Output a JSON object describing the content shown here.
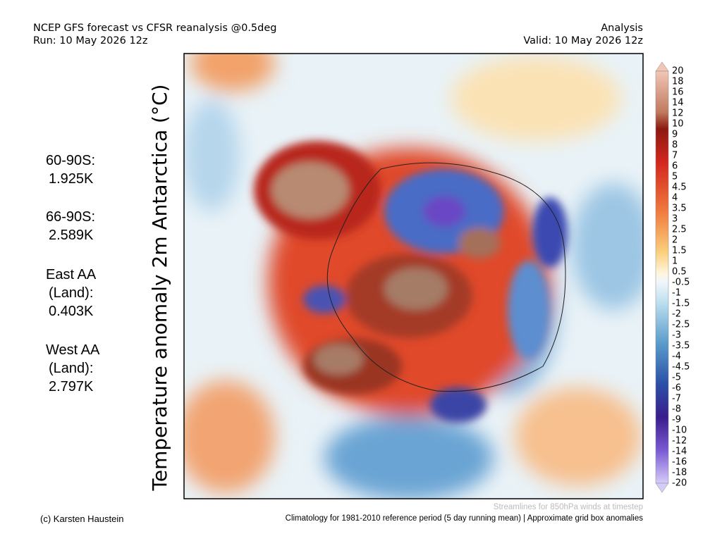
{
  "header": {
    "title": "NCEP GFS forecast vs CFSR reanalysis @0.5deg",
    "run": "Run: 10 May 2026 12z",
    "kind": "Analysis",
    "valid": "Valid: 10 May 2026 12z"
  },
  "axis_label": "Temperature anomaly 2m Antarctica (°C)",
  "stats": [
    {
      "lines": [
        "60-90S:"
      ],
      "value": "1.925K"
    },
    {
      "lines": [
        "66-90S:"
      ],
      "value": "2.589K"
    },
    {
      "lines": [
        "East AA",
        "(Land):"
      ],
      "value": "0.403K"
    },
    {
      "lines": [
        "West AA",
        "(Land):"
      ],
      "value": "2.797K"
    }
  ],
  "colorbar_labels": [
    "20",
    "18",
    "16",
    "14",
    "12",
    "10",
    "9",
    "8",
    "7",
    "6",
    "5",
    "4.5",
    "4",
    "3.5",
    "3",
    "2.5",
    "2",
    "1.5",
    "1",
    "0.5",
    "-0.5",
    "-1",
    "-1.5",
    "-2",
    "-2.5",
    "-3",
    "-3.5",
    "-4",
    "-4.5",
    "-5",
    "-6",
    "-7",
    "-8",
    "-9",
    "-10",
    "-12",
    "-14",
    "-16",
    "-18",
    "-20"
  ],
  "footer": {
    "streamlines": "Streamlines for 850hPa winds at timestep",
    "credit": "(c) Karsten Haustein",
    "climatology": "Climatology for 1981-2010 reference period (5 day running mean) | Approximate grid box anomalies"
  }
}
